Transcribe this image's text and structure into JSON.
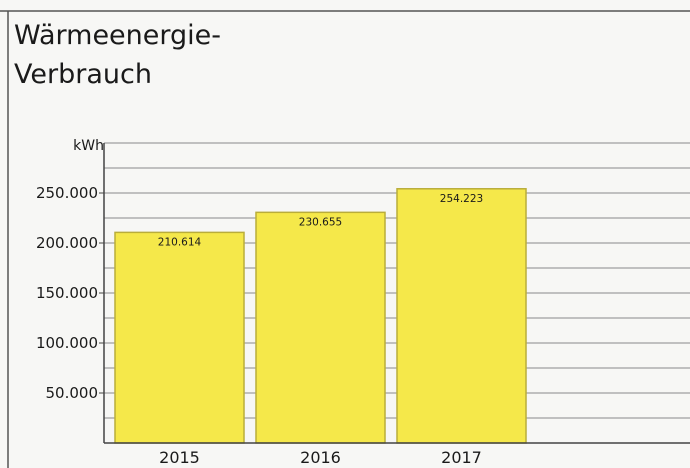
{
  "chart_data": {
    "type": "bar",
    "title": [
      "Wärmeenergie-",
      "Verbrauch"
    ],
    "ylabel": "kWh",
    "categories": [
      "2015",
      "2016",
      "2017"
    ],
    "values": [
      210614,
      230655,
      254223
    ],
    "value_labels": [
      "210.614",
      "230.655",
      "254.223"
    ],
    "ylim": [
      0,
      300000
    ],
    "yticks": [
      50000,
      100000,
      150000,
      200000,
      250000
    ],
    "ytick_labels": [
      "50.000",
      "100.000",
      "150.000",
      "200.000",
      "250.000"
    ],
    "grid": true,
    "legend": "none",
    "colors": {
      "bar_fill": "#f5e84a",
      "bar_stroke": "#b9ad3a",
      "grid": "#8a8a8a",
      "axis": "#444444",
      "frame": "#555555"
    }
  }
}
